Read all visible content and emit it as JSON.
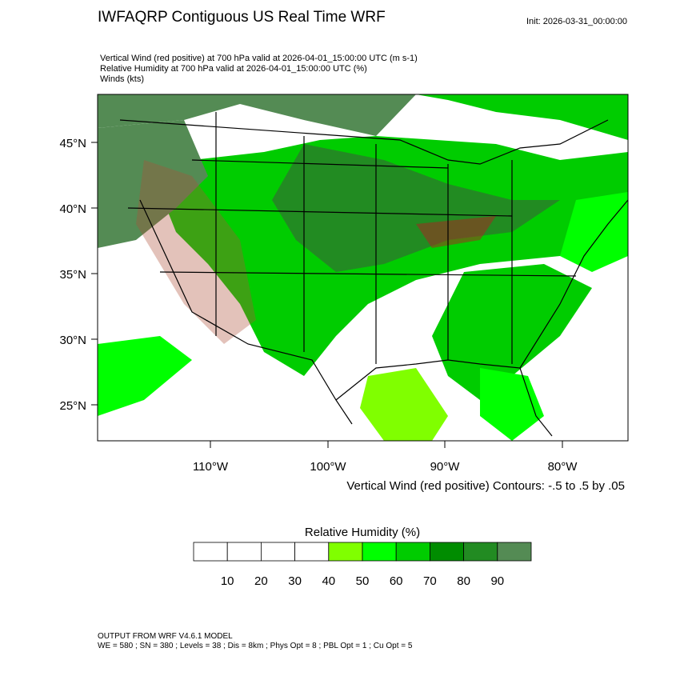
{
  "header": {
    "title": "IWFAQRP Contiguous US Real Time WRF",
    "init": "Init: 2026-03-31_00:00:00",
    "lines": [
      "Vertical Wind (red positive) at 700 hPa valid at 2026-04-01_15:00:00 UTC   (m s-1)",
      "Relative Humidity at 700 hPa valid at 2026-04-01_15:00:00 UTC   (%)",
      "Winds   (kts)"
    ]
  },
  "map": {
    "lat_labels": [
      "45°N",
      "40°N",
      "35°N",
      "30°N",
      "25°N"
    ],
    "lon_labels": [
      "110°W",
      "100°W",
      "90°W",
      "80°W"
    ],
    "contour_note": "Vertical Wind (red positive) Contours: -.5 to .5 by .05"
  },
  "colorbar": {
    "title": "Relative Humidity  (%)",
    "colors": [
      "#ffffff",
      "#ffffff",
      "#ffffff",
      "#ffffff",
      "#80ff00",
      "#00ff00",
      "#00cc00",
      "#008c00",
      "#228b22",
      "#548b54"
    ],
    "labels": [
      "10",
      "20",
      "30",
      "40",
      "50",
      "60",
      "70",
      "80",
      "90"
    ]
  },
  "footer": {
    "lines": [
      "OUTPUT FROM WRF V4.6.1 MODEL",
      "WE = 580 ; SN = 380 ; Levels = 38 ; Dis = 8km ; Phys Opt = 8 ; PBL Opt = 1 ; Cu Opt = 5"
    ]
  }
}
